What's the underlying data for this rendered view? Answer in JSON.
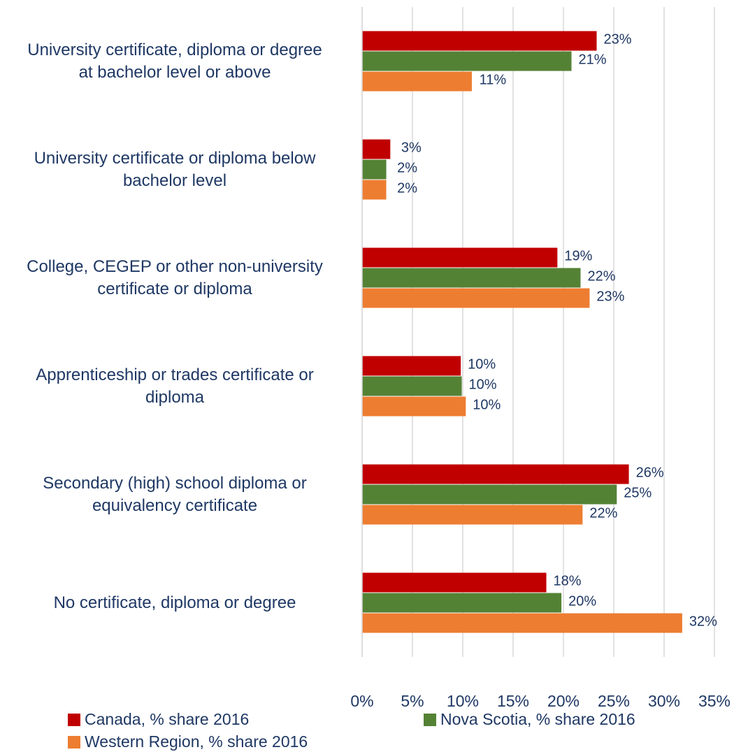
{
  "chart_data": {
    "type": "barh",
    "categories": [
      "University certificate, diploma or degree\nat bachelor level or above",
      "University certificate or diploma below\nbachelor level",
      "College, CEGEP or other non-university\ncertificate or diploma",
      "Apprenticeship or trades certificate or\ndiploma",
      "Secondary (high) school diploma or\nequivalency certificate",
      "No certificate, diploma or degree"
    ],
    "series": [
      {
        "name": "Canada, % share 2016",
        "color": "#c00000",
        "values": [
          23.3,
          2.8,
          19.4,
          9.8,
          26.5,
          18.3
        ],
        "value_labels": [
          "23%",
          "3%",
          "19%",
          "10%",
          "26%",
          "18%"
        ]
      },
      {
        "name": "Nova Scotia, % share 2016",
        "color": "#548235",
        "values": [
          20.8,
          2.4,
          21.7,
          9.9,
          25.3,
          19.8
        ],
        "value_labels": [
          "21%",
          "2%",
          "22%",
          "10%",
          "25%",
          "20%"
        ]
      },
      {
        "name": "Western Region, % share 2016",
        "color": "#ed7d31",
        "values": [
          10.9,
          2.4,
          22.6,
          10.3,
          21.9,
          31.8
        ],
        "value_labels": [
          "11%",
          "2%",
          "23%",
          "10%",
          "22%",
          "32%"
        ]
      }
    ],
    "xlim": [
      0,
      35
    ],
    "xticks": [
      {
        "value": 0,
        "label": "0%"
      },
      {
        "value": 5,
        "label": "5%"
      },
      {
        "value": 10,
        "label": "10%"
      },
      {
        "value": 15,
        "label": "15%"
      },
      {
        "value": 20,
        "label": "20%"
      },
      {
        "value": 25,
        "label": "25%"
      },
      {
        "value": 30,
        "label": "30%"
      },
      {
        "value": 35,
        "label": "35%"
      }
    ],
    "grid": true,
    "legend": "bottom"
  }
}
